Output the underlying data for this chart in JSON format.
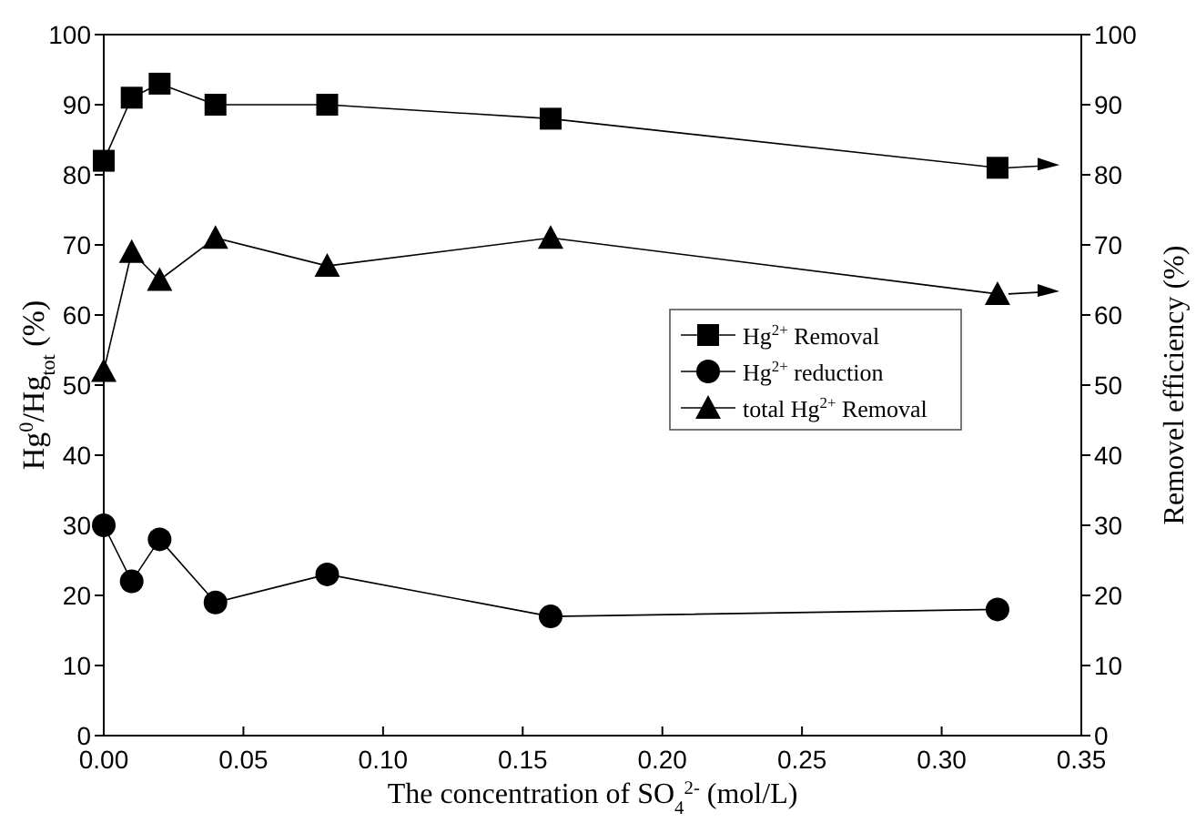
{
  "chart_data": {
    "type": "line",
    "xlabel": "The concentration of SO$_{4}$$^{2-}$ (mol/L)",
    "ylabel": "Hg$^{0}$/Hg$_{tot}$ (%)",
    "y2label": "Removel efficiency (%)",
    "x": [
      0,
      0.01,
      0.02,
      0.04,
      0.08,
      0.16,
      0.32
    ],
    "series": [
      {
        "name": "Hg$^{2+}$ Removal",
        "color": "#000000",
        "marker": "square",
        "axis": "y2",
        "values": [
          82,
          91,
          93,
          90,
          90,
          88,
          81
        ]
      },
      {
        "name": "Hg$^{2+}$ reduction",
        "color": "#000000",
        "marker": "circle",
        "values": [
          30,
          22,
          28,
          19,
          23,
          17,
          18
        ]
      },
      {
        "name": "total Hg$^{2+}$ Removal",
        "color": "#000000",
        "marker": "triangle",
        "axis": "y2",
        "values": [
          52,
          69,
          65,
          71,
          67,
          71,
          63
        ]
      }
    ],
    "xlim": [
      0,
      0.35
    ],
    "xticks": [
      {
        "value": 0,
        "label": "0.00"
      },
      {
        "value": 0.05,
        "label": "0.05"
      },
      {
        "value": 0.1,
        "label": "0.10"
      },
      {
        "value": 0.15,
        "label": "0.15"
      },
      {
        "value": 0.2,
        "label": "0.20"
      },
      {
        "value": 0.25,
        "label": "0.25"
      },
      {
        "value": 0.3,
        "label": "0.30"
      },
      {
        "value": 0.35,
        "label": "0.35"
      }
    ],
    "ylim": [
      0,
      100
    ],
    "yticks": [
      0,
      10,
      20,
      30,
      40,
      50,
      60,
      70,
      80,
      90,
      100
    ],
    "y2lim": [
      0,
      100
    ],
    "y2ticks": [
      0,
      10,
      20,
      30,
      40,
      50,
      60,
      70,
      80,
      90,
      100
    ],
    "legend": "right",
    "grid": false,
    "line_style": "solid"
  }
}
